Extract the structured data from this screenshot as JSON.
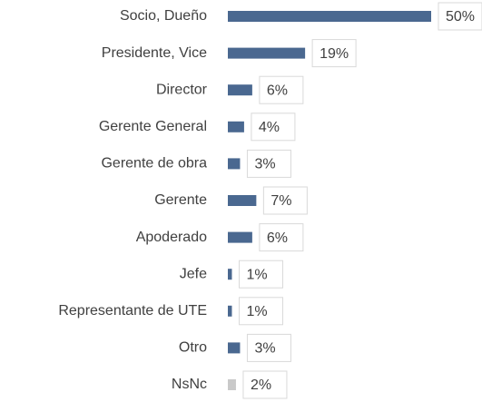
{
  "chart_data": {
    "type": "hbar",
    "categories": [
      "Socio, Dueño",
      "Presidente, Vice",
      "Director",
      "Gerente General",
      "Gerente de obra",
      "Gerente",
      "Apoderado",
      "Jefe",
      "Representante de UTE",
      "Otro",
      "NsNc"
    ],
    "values": [
      50,
      19,
      6,
      4,
      3,
      7,
      6,
      1,
      1,
      3,
      2
    ],
    "value_labels": [
      "50%",
      "19%",
      "6%",
      "4%",
      "3%",
      "7%",
      "6%",
      "1%",
      "1%",
      "3%",
      "2%"
    ],
    "colors": [
      "#4a6890",
      "#4a6890",
      "#4a6890",
      "#4a6890",
      "#4a6890",
      "#4a6890",
      "#4a6890",
      "#4a6890",
      "#4a6890",
      "#4a6890",
      "#c9c9c9"
    ]
  }
}
